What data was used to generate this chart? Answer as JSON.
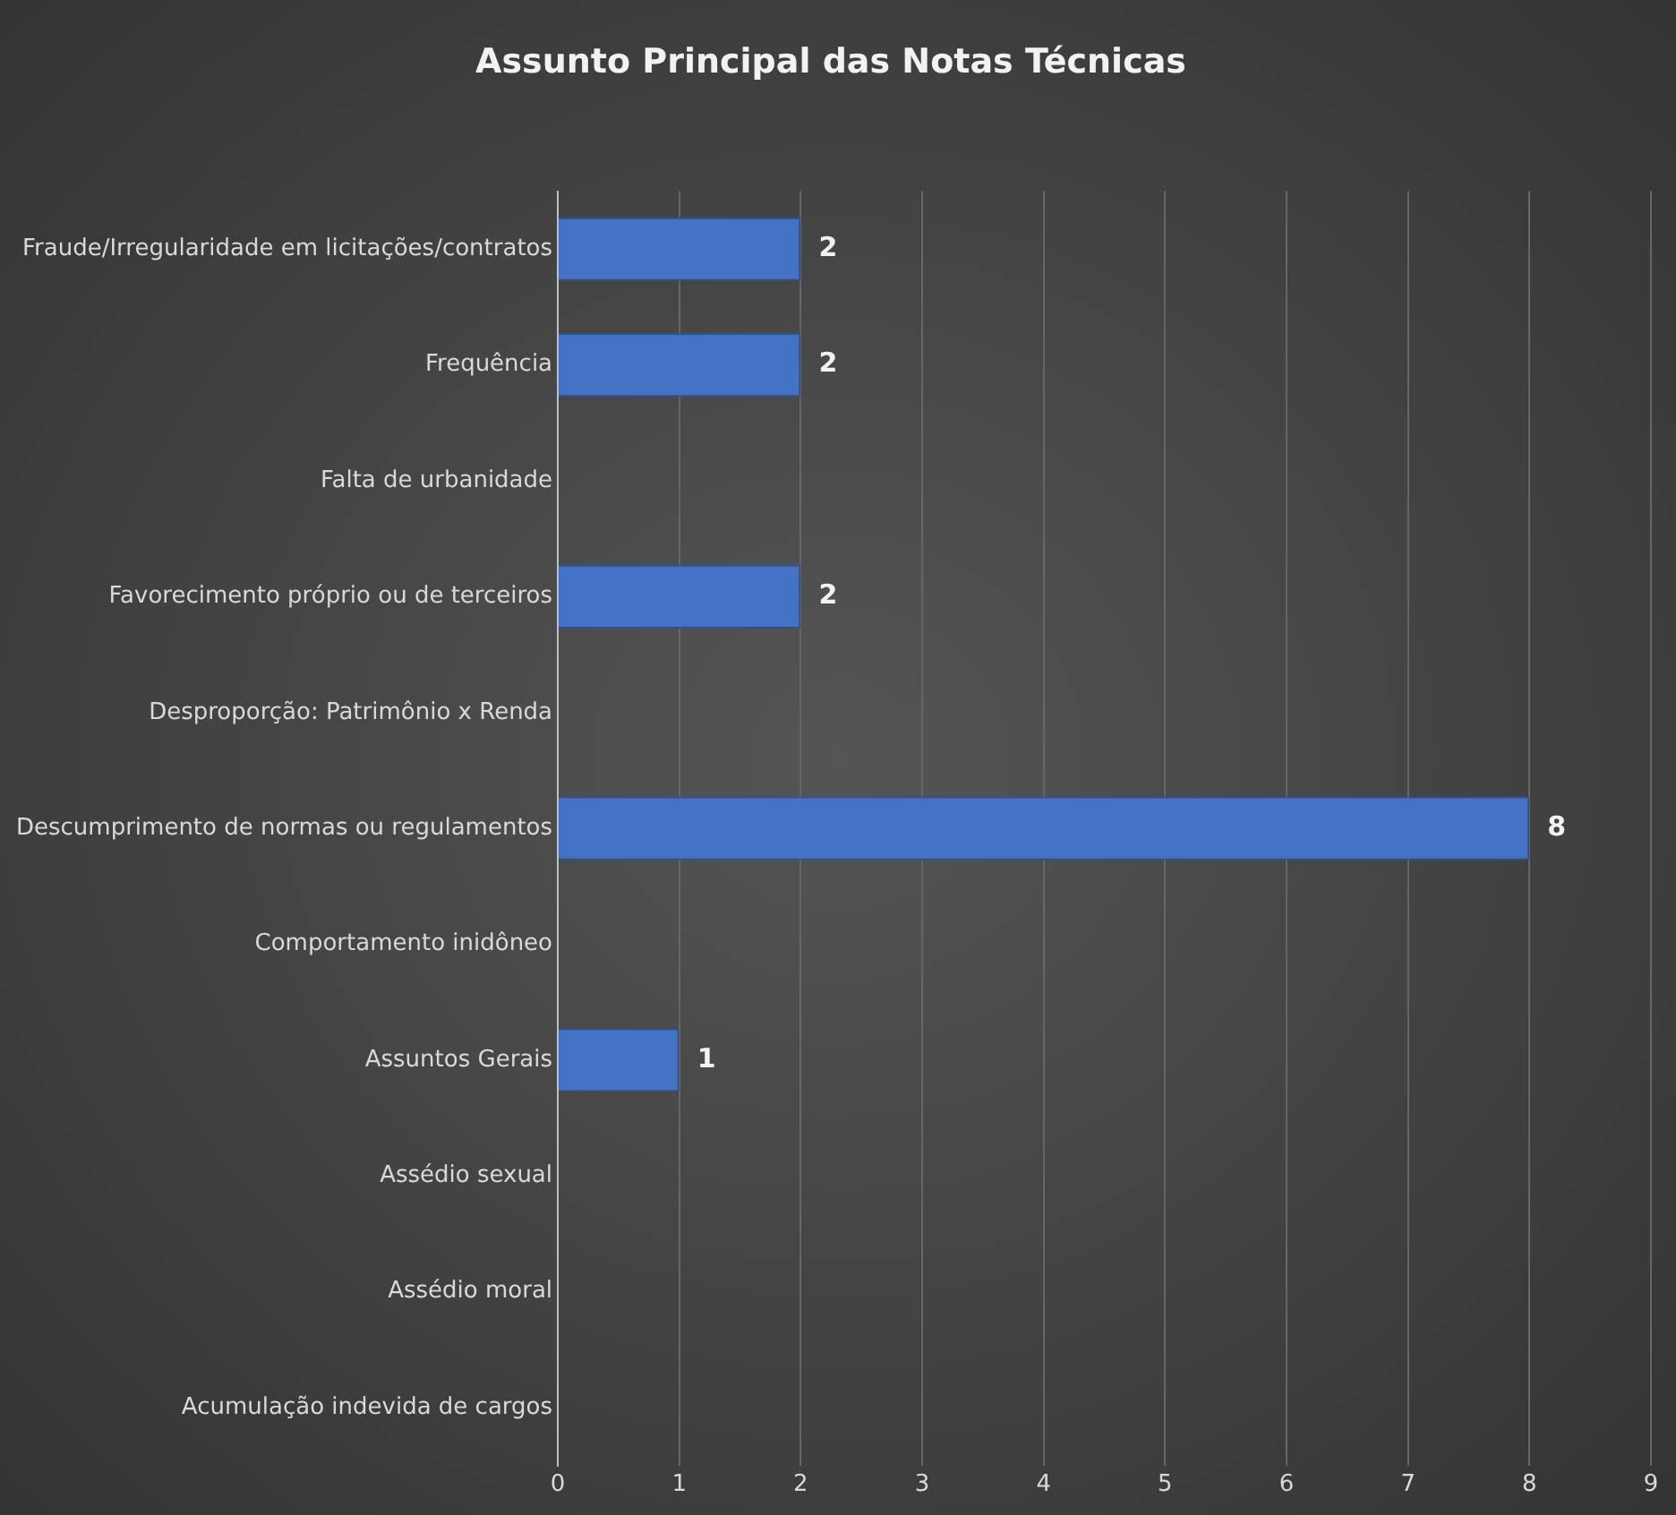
{
  "chart_data": {
    "type": "bar",
    "orientation": "horizontal",
    "title": "Assunto Principal das Notas Técnicas",
    "categories": [
      "Fraude/Irregularidade em licitações/contratos",
      "Frequência",
      "Falta de urbanidade",
      "Favorecimento próprio ou de terceiros",
      "Desproporção: Patrimônio x Renda",
      "Descumprimento de normas ou regulamentos",
      "Comportamento inidôneo",
      "Assuntos Gerais",
      "Assédio sexual",
      "Assédio moral",
      "Acumulação indevida de cargos"
    ],
    "values": [
      2,
      2,
      null,
      2,
      null,
      8,
      null,
      1,
      null,
      null,
      null
    ],
    "value_labels": [
      "2",
      "2",
      null,
      "2",
      null,
      "8",
      null,
      "1",
      null,
      null,
      null
    ],
    "color": "#4472c4",
    "xlim": [
      0,
      9
    ],
    "xticks": [
      0,
      1,
      2,
      3,
      4,
      5,
      6,
      7,
      8,
      9
    ],
    "grid": "x",
    "legend": false
  }
}
